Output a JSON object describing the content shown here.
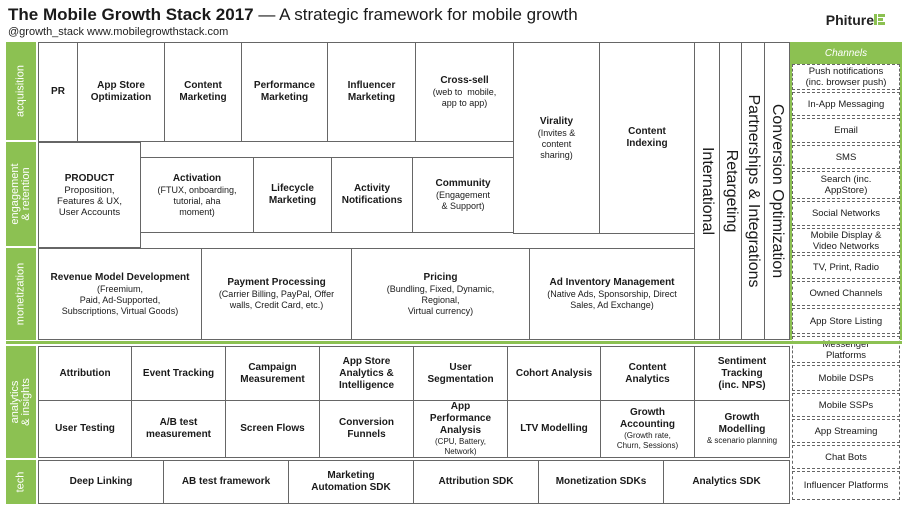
{
  "header": {
    "title_bold": "The Mobile Growth Stack 2017",
    "title_rest": " — A strategic framework for mobile growth",
    "subtitle": "@growth_stack  www.mobilegrowthstack.com",
    "logo": "Phiture"
  },
  "sections": {
    "acquisition": "acquisition",
    "engagement": "engagement\n& retention",
    "monetization": "monetization",
    "analytics": "analytics\n& insights",
    "tech": "tech"
  },
  "acquisition": {
    "pr": {
      "t": "PR"
    },
    "aso": {
      "t": "App Store\nOptimization"
    },
    "content_marketing": {
      "t": "Content\nMarketing"
    },
    "performance_marketing": {
      "t": "Performance\nMarketing"
    },
    "influencer_marketing": {
      "t": "Influencer\nMarketing"
    },
    "cross_sell": {
      "t": "Cross-sell",
      "d": "(web to  mobile,\napp to app)"
    },
    "virality": {
      "t": "Virality",
      "d": "(Invites &\ncontent\nsharing)"
    },
    "content_indexing": {
      "t": "Content\nIndexing"
    }
  },
  "engagement": {
    "product": {
      "t": "PRODUCT",
      "d": "Proposition,\nFeatures & UX,\nUser Accounts"
    },
    "activation": {
      "t": "Activation",
      "d": "(FTUX, onboarding,\ntutorial, aha\nmoment)"
    },
    "lifecycle": {
      "t": "Lifecycle\nMarketing"
    },
    "activity": {
      "t": "Activity\nNotifications"
    },
    "community": {
      "t": "Community",
      "d": "(Engagement\n& Support)"
    }
  },
  "monetization": {
    "revenue_model": {
      "t": "Revenue Model Development",
      "d": "(Freemium,\nPaid, Ad-Supported,\nSubscriptions, Virtual Goods)"
    },
    "payment": {
      "t": "Payment Processing",
      "d": "(Carrier Billing, PayPal, Offer\nwalls, Credit Card, etc.)"
    },
    "pricing": {
      "t": "Pricing",
      "d": "(Bundling, Fixed, Dynamic,\nRegional,\nVirtual currency)"
    },
    "ad_inventory": {
      "t": "Ad Inventory Management",
      "d": "(Native Ads, Sponsorship, Direct\nSales, Ad Exchange)"
    }
  },
  "verticals": {
    "international": "International",
    "retargeting": "Retargeting",
    "partnerships": "Partnerships & Integrations",
    "conversion": "Conversion Optimization"
  },
  "channels": {
    "header": "Channels",
    "items": [
      "Push notifications\n(inc. browser push)",
      "In-App Messaging",
      "Email",
      "SMS",
      "Search (inc.\nAppStore)",
      "Social Networks",
      "Mobile Display &\nVideo Networks",
      "TV, Print, Radio",
      "Owned Channels",
      "App Store Listing",
      "Messenger\nPlatforms",
      "Mobile DSPs",
      "Mobile SSPs",
      "App Streaming",
      "Chat Bots",
      "Influencer Platforms"
    ]
  },
  "analytics": {
    "row1": [
      {
        "t": "Attribution"
      },
      {
        "t": "Event Tracking"
      },
      {
        "t": "Campaign\nMeasurement"
      },
      {
        "t": "App Store\nAnalytics &\nIntelligence"
      },
      {
        "t": "User\nSegmentation"
      },
      {
        "t": "Cohort Analysis"
      },
      {
        "t": "Content\nAnalytics"
      },
      {
        "t": "Sentiment\nTracking\n(inc. NPS)"
      }
    ],
    "row2": [
      {
        "t": "User Testing"
      },
      {
        "t": "A/B test\nmeasurement"
      },
      {
        "t": "Screen Flows"
      },
      {
        "t": "Conversion\nFunnels"
      },
      {
        "t": "App\nPerformance\nAnalysis",
        "d": "(CPU, Battery,\nNetwork)"
      },
      {
        "t": "LTV Modelling"
      },
      {
        "t": "Growth\nAccounting",
        "d": "(Growth rate,\nChurn, Sessions)"
      },
      {
        "t": "Growth\nModelling",
        "d": "& scenario planning"
      }
    ]
  },
  "tech": [
    {
      "t": "Deep Linking"
    },
    {
      "t": "AB test framework"
    },
    {
      "t": "Marketing\nAutomation SDK"
    },
    {
      "t": "Attribution SDK"
    },
    {
      "t": "Monetization SDKs"
    },
    {
      "t": "Analytics SDK"
    }
  ]
}
